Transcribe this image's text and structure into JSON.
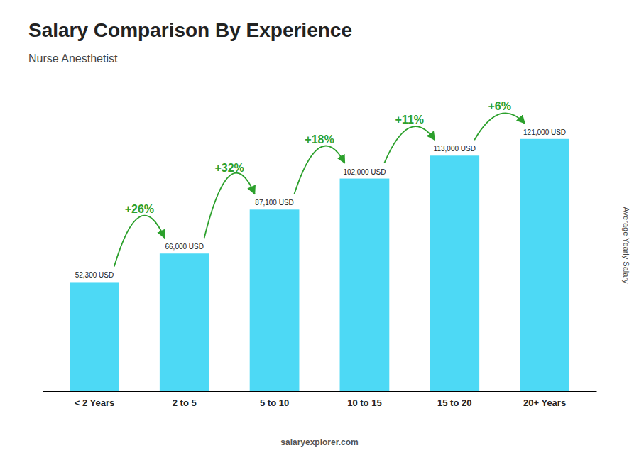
{
  "chart_data": {
    "type": "bar",
    "title": "Salary Comparison By Experience",
    "subtitle": "Nurse Anesthetist",
    "ylabel": "Average Yearly Salary",
    "watermark": "salaryexplorer.com",
    "categories": [
      "< 2 Years",
      "2 to 5",
      "5 to 10",
      "10 to 15",
      "15 to 20",
      "20+ Years"
    ],
    "values": [
      52300,
      66000,
      87100,
      102000,
      113000,
      121000
    ],
    "value_labels": [
      "52,300 USD",
      "66,000 USD",
      "87,100 USD",
      "102,000 USD",
      "113,000 USD",
      "121,000 USD"
    ],
    "data_labels": true,
    "annotations": [
      "+26%",
      "+32%",
      "+18%",
      "+11%",
      "+6%"
    ],
    "color": "#4dd9f5",
    "ylim": [
      0,
      140000
    ],
    "tick_labels": "x",
    "grid": false
  }
}
